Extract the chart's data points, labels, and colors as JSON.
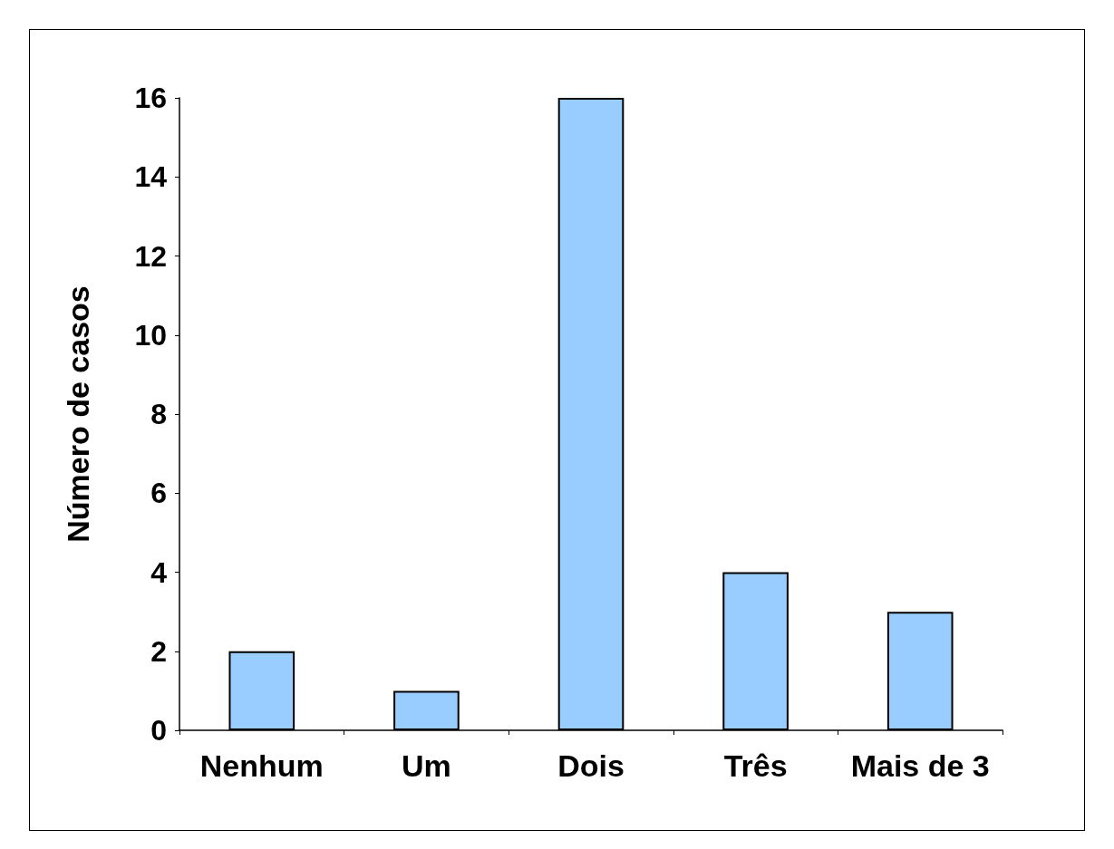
{
  "chart_data": {
    "type": "bar",
    "ylabel": "Número de casos",
    "categories": [
      "Nenhum",
      "Um",
      "Dois",
      "Três",
      "Mais de 3"
    ],
    "values": [
      2,
      1,
      16,
      4,
      3
    ],
    "color": "#99ccff",
    "ylim": [
      0,
      16
    ],
    "yticks": [
      0,
      2,
      4,
      6,
      8,
      10,
      12,
      14,
      16
    ],
    "grid": false
  }
}
